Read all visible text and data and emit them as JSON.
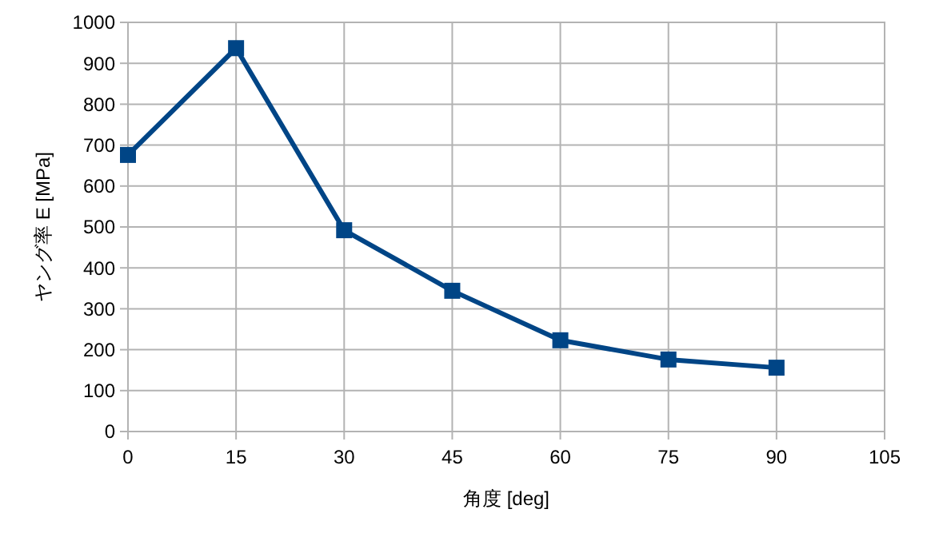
{
  "chart_data": {
    "type": "line",
    "xlabel": "角度 [deg]",
    "ylabel": "ヤング率 E [MPa]",
    "x": [
      0,
      15,
      30,
      45,
      60,
      75,
      90
    ],
    "series": [
      {
        "color": "#004586",
        "values": [
          676,
          937,
          492,
          344,
          223,
          176,
          156
        ]
      }
    ],
    "xlim": [
      0,
      105
    ],
    "xticks": [
      0,
      15,
      30,
      45,
      60,
      75,
      90,
      105
    ],
    "ylim": [
      0,
      1000
    ],
    "yticks": [
      0,
      100,
      200,
      300,
      400,
      500,
      600,
      700,
      800,
      900,
      1000
    ],
    "grid": true,
    "marker": "square",
    "line_style": "solid"
  }
}
